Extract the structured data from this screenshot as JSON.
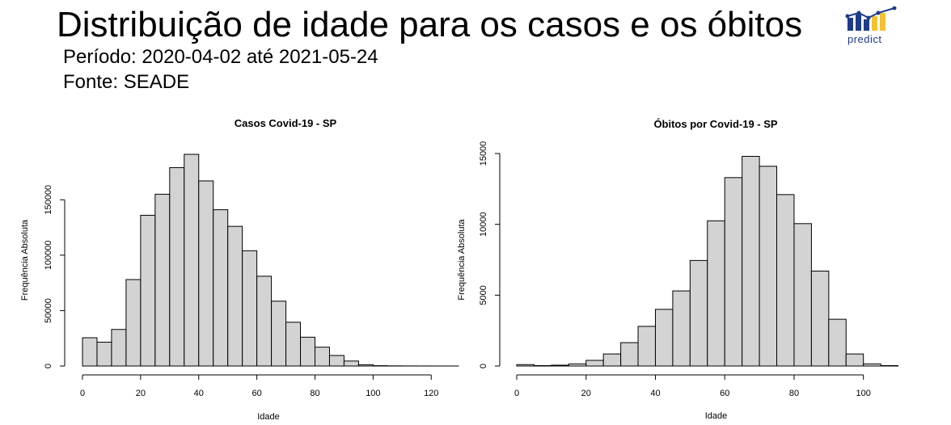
{
  "header": {
    "title": "Distribuição de idade para os casos e os óbitos",
    "period_label": "Período:  2020-04-02 até 2021-05-24",
    "source_label": "Fonte: SEADE",
    "logo_text": "predict"
  },
  "colors": {
    "bar_fill": "#d3d3d3",
    "bar_stroke": "#000000",
    "logo_blue": "#1e3a8a",
    "logo_yellow": "#f2c230"
  },
  "chart_data": [
    {
      "type": "bar",
      "title": "Casos Covid-19 - SP",
      "xlabel": "Idade",
      "ylabel": "Frequência Absoluta",
      "bin_width": 5,
      "x": [
        0,
        5,
        10,
        15,
        20,
        25,
        30,
        35,
        40,
        45,
        50,
        55,
        60,
        65,
        70,
        75,
        80,
        85,
        90,
        95,
        100,
        105,
        110,
        115,
        120,
        125
      ],
      "values": [
        25500,
        21500,
        33000,
        78000,
        136000,
        155000,
        179000,
        191000,
        167000,
        141000,
        126000,
        104000,
        81000,
        58500,
        39500,
        26000,
        17000,
        9500,
        4500,
        1200,
        300,
        150,
        80,
        50,
        30,
        20
      ],
      "xlim": [
        0,
        128
      ],
      "ylim": [
        0,
        191000
      ],
      "xticks": [
        "0",
        "20",
        "40",
        "60",
        "80",
        "100",
        "120"
      ],
      "yticks": [
        "0",
        "50000",
        "100000",
        "150000"
      ],
      "grid": false
    },
    {
      "type": "bar",
      "title": "Óbitos por Covid-19 - SP",
      "xlabel": "Idade",
      "ylabel": "Frequência Absoluta",
      "bin_width": 5,
      "x": [
        0,
        5,
        10,
        15,
        20,
        25,
        30,
        35,
        40,
        45,
        50,
        55,
        60,
        65,
        70,
        75,
        80,
        85,
        90,
        95,
        100,
        105,
        110
      ],
      "values": [
        100,
        30,
        60,
        150,
        400,
        850,
        1650,
        2800,
        4000,
        5300,
        7450,
        10250,
        13300,
        14800,
        14100,
        12100,
        10050,
        6700,
        3300,
        850,
        150,
        30,
        0
      ],
      "xlim": [
        0,
        115
      ],
      "ylim": [
        0,
        15000
      ],
      "xticks": [
        "0",
        "20",
        "40",
        "60",
        "80",
        "100"
      ],
      "yticks": [
        "0",
        "5000",
        "10000",
        "15000"
      ],
      "grid": false
    }
  ]
}
